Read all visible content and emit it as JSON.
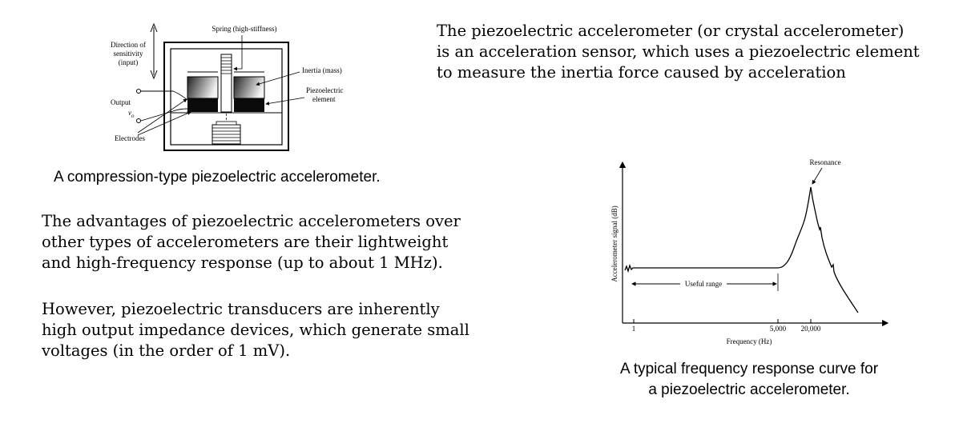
{
  "intro": {
    "lines": [
      "The piezoelectric accelerometer (or crystal accelerometer)",
      "is an acceleration sensor, which uses a piezoelectric element",
      "to measure the inertia force caused by acceleration"
    ]
  },
  "diagram": {
    "labels": {
      "direction_1": "Direction of",
      "direction_2": "sensitivity",
      "direction_3": "(input)",
      "spring": "Spring (high-stiffness)",
      "inertia": "Inertia (mass)",
      "piezo_1": "Piezoelectric",
      "piezo_2": "element",
      "output": "Output",
      "vo": "v",
      "vo_sub": "o",
      "electrodes": "Electrodes"
    },
    "caption": "A compression-type piezoelectric accelerometer."
  },
  "advantages": {
    "lines": [
      "The advantages of piezoelectric accelerometers over",
      "other types of accelerometers are their lightweight",
      "and high-frequency response (up to about 1 MHz)."
    ]
  },
  "impedance": {
    "lines": [
      "However, piezoelectric transducers are inherently",
      "high output impedance devices, which generate small",
      "voltages (in the order of 1 mV)."
    ]
  },
  "chart_data": {
    "type": "line",
    "title": "",
    "xlabel": "Frequency (Hz)",
    "ylabel": "Accelerometer signal (dB)",
    "x_scale": "log",
    "x_ticks": [
      "1",
      "5,000",
      "20,000"
    ],
    "annotations": [
      "Resonance",
      "Useful range"
    ],
    "series": [
      {
        "x": [
          0.8,
          1,
          10,
          100,
          1000,
          5000,
          8000,
          12000,
          16000,
          20000,
          25000,
          32000,
          45000,
          70000
        ],
        "values": [
          0,
          0,
          0,
          0,
          0,
          0.5,
          6,
          16,
          28,
          35,
          22,
          11,
          4,
          -8
        ]
      }
    ]
  },
  "chart_caption": {
    "line1": "A typical frequency response curve for",
    "line2": "a piezoelectric accelerometer."
  }
}
